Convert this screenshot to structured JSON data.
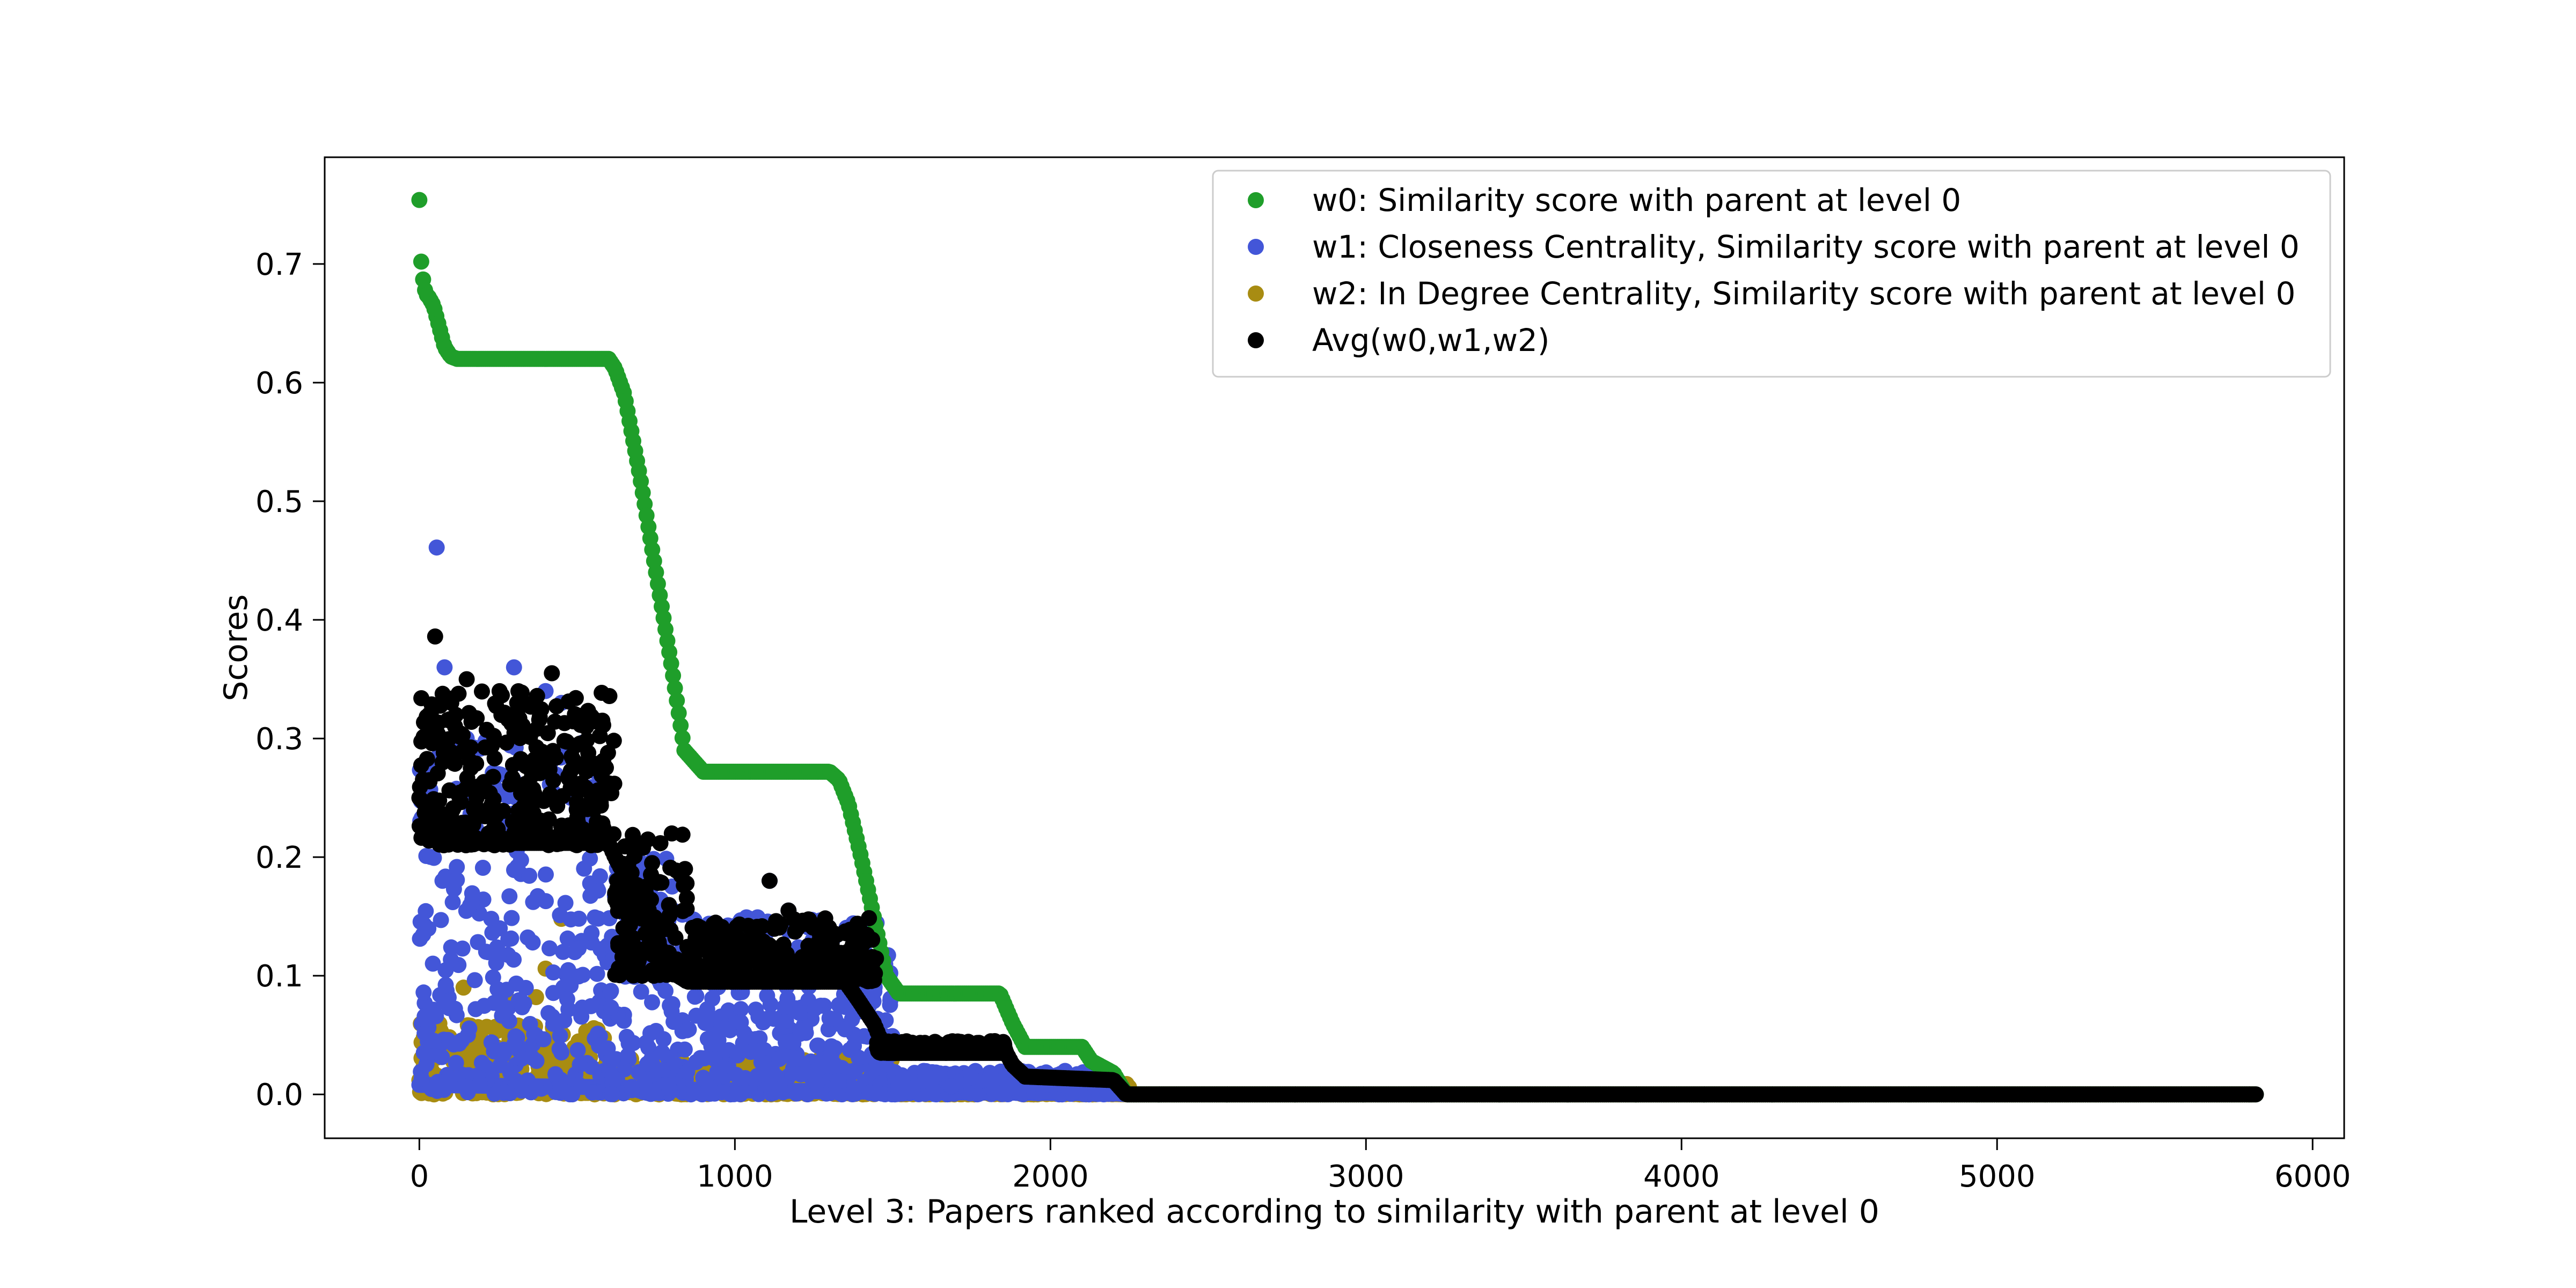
{
  "chart_data": {
    "type": "scatter",
    "title": "",
    "xlabel": "Level 3: Papers ranked according to similarity with parent at level 0",
    "ylabel": "Scores",
    "xlim": [
      -300,
      6100
    ],
    "ylim": [
      -0.037,
      0.79
    ],
    "x_ticks": [
      0,
      1000,
      2000,
      3000,
      4000,
      5000,
      6000
    ],
    "y_ticks": [
      0.0,
      0.1,
      0.2,
      0.3,
      0.4,
      0.5,
      0.6,
      0.7
    ],
    "x_tick_labels": [
      "0",
      "1000",
      "2000",
      "3000",
      "4000",
      "5000",
      "6000"
    ],
    "y_tick_labels": [
      "0.0",
      "0.1",
      "0.2",
      "0.3",
      "0.4",
      "0.5",
      "0.6",
      "0.7"
    ],
    "grid": false,
    "legend_position": "top-right",
    "n_points": 5820,
    "series": [
      {
        "name": "w0: Similarity score with parent at level 0",
        "color": "#1f9e2a",
        "profile_x": [
          0,
          2,
          5,
          10,
          20,
          30,
          45,
          60,
          80,
          100,
          120,
          600,
          620,
          650,
          700,
          750,
          800,
          840,
          900,
          1300,
          1330,
          1360,
          1400,
          1440,
          1480,
          1520,
          1840,
          1880,
          1920,
          2100,
          2130,
          2200,
          2240,
          5820
        ],
        "profile_y": [
          0.754,
          0.71,
          0.705,
          0.69,
          0.675,
          0.672,
          0.665,
          0.65,
          0.63,
          0.622,
          0.62,
          0.62,
          0.612,
          0.59,
          0.52,
          0.44,
          0.36,
          0.29,
          0.272,
          0.272,
          0.265,
          0.245,
          0.2,
          0.15,
          0.1,
          0.085,
          0.085,
          0.06,
          0.04,
          0.04,
          0.028,
          0.018,
          0.0,
          0.0
        ]
      },
      {
        "name": "w1: Closeness Centrality, Similarity score with parent at level 0",
        "color": "#4356d8",
        "baseline_x": [
          0,
          600,
          800,
          1500,
          2200,
          2250
        ],
        "baseline_y": [
          0.008,
          0.006,
          0.004,
          0.002,
          0.001,
          0.0
        ],
        "scatter_segments": [
          {
            "x_range": [
              0,
              600
            ],
            "y_range": [
              0.0,
              0.3
            ]
          },
          {
            "x_range": [
              600,
              850
            ],
            "y_range": [
              0.0,
              0.2
            ]
          },
          {
            "x_range": [
              850,
              1500
            ],
            "y_range": [
              0.0,
              0.15
            ]
          },
          {
            "x_range": [
              1500,
              2200
            ],
            "y_range": [
              0.0,
              0.02
            ]
          }
        ],
        "outliers": [
          [
            55,
            0.461
          ],
          [
            80,
            0.36
          ],
          [
            300,
            0.36
          ],
          [
            400,
            0.34
          ],
          [
            450,
            0.33
          ],
          [
            1110,
            0.18
          ],
          [
            1170,
            0.155
          ],
          [
            150,
            0.3
          ],
          [
            250,
            0.27
          ],
          [
            480,
            0.25
          ]
        ]
      },
      {
        "name": "w2: In Degree Centrality, Similarity score with parent at level 0",
        "color": "#a88c12",
        "baseline_x": [
          0,
          600,
          1500,
          2250,
          5820
        ],
        "baseline_y": [
          0.012,
          0.008,
          0.003,
          0.0,
          0.0
        ],
        "scatter_segments": [
          {
            "x_range": [
              0,
              600
            ],
            "y_range": [
              0.0,
              0.06
            ]
          },
          {
            "x_range": [
              600,
              1500
            ],
            "y_range": [
              0.0,
              0.03
            ]
          },
          {
            "x_range": [
              1500,
              2250
            ],
            "y_range": [
              0.0,
              0.01
            ]
          }
        ],
        "outliers": [
          [
            140,
            0.09
          ],
          [
            400,
            0.106
          ],
          [
            450,
            0.148
          ],
          [
            280,
            0.08
          ],
          [
            370,
            0.082
          ]
        ]
      },
      {
        "name": "Avg(w0,w1,w2)",
        "color": "#000000",
        "profile_x": [
          0,
          100,
          120,
          600,
          620,
          700,
          760,
          820,
          850,
          1350,
          1390,
          1440,
          1480,
          1860,
          1880,
          1920,
          2200,
          2240,
          5820
        ],
        "profile_y": [
          0.25,
          0.22,
          0.212,
          0.212,
          0.2,
          0.16,
          0.125,
          0.1,
          0.095,
          0.095,
          0.08,
          0.06,
          0.035,
          0.035,
          0.025,
          0.015,
          0.012,
          0.0,
          0.0
        ],
        "scatter_segments": [
          {
            "x_range": [
              0,
              620
            ],
            "y_range": [
              0.21,
              0.34
            ]
          },
          {
            "x_range": [
              620,
              850
            ],
            "y_range": [
              0.1,
              0.22
            ]
          },
          {
            "x_range": [
              850,
              1450
            ],
            "y_range": [
              0.095,
              0.15
            ]
          },
          {
            "x_range": [
              1450,
              1860
            ],
            "y_range": [
              0.035,
              0.045
            ]
          }
        ],
        "outliers": [
          [
            50,
            0.386
          ],
          [
            420,
            0.355
          ],
          [
            1110,
            0.18
          ],
          [
            1170,
            0.155
          ],
          [
            580,
            0.315
          ],
          [
            150,
            0.35
          ],
          [
            310,
            0.33
          ],
          [
            460,
            0.313
          ]
        ]
      }
    ]
  }
}
